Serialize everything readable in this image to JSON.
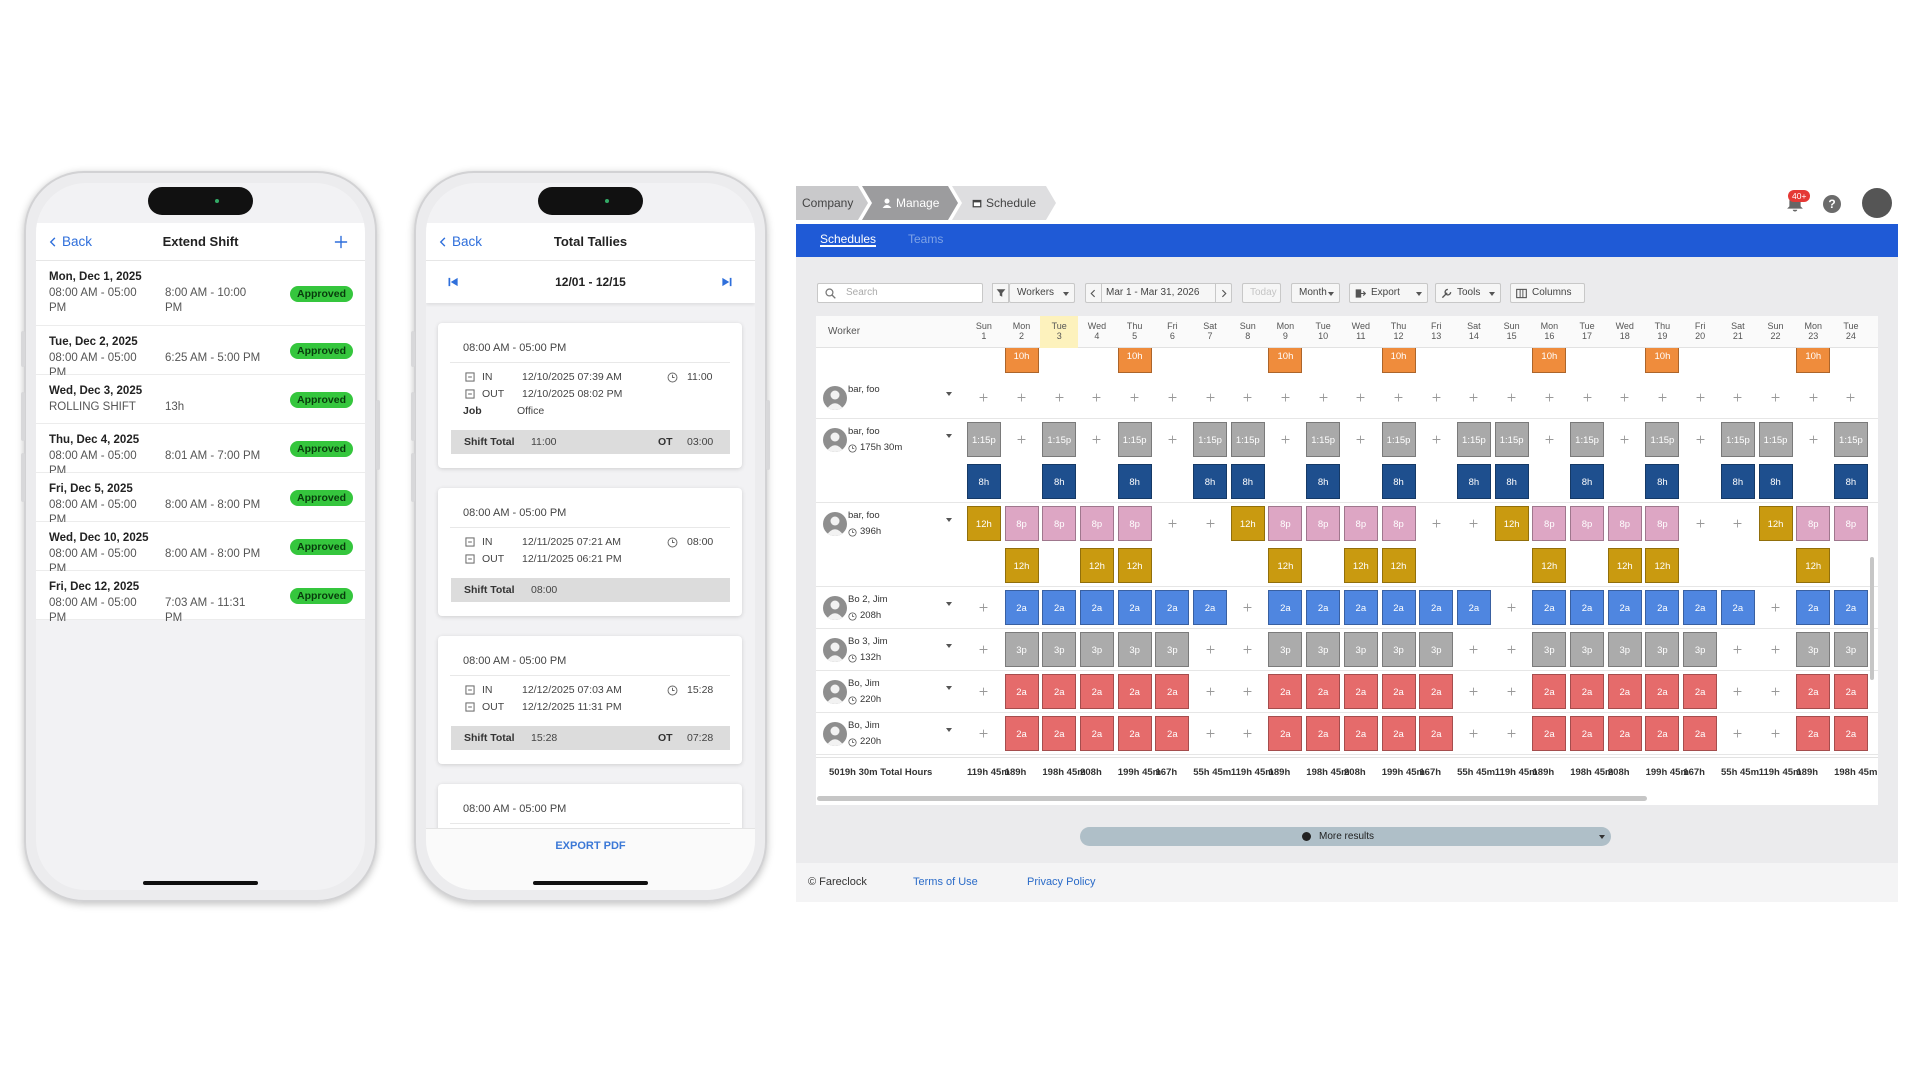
{
  "phone_extend": {
    "back": "Back",
    "title": "Extend Shift",
    "shifts": [
      {
        "date": "Mon, Dec 1, 2025",
        "scheduled": "08:00 AM - 05:00 PM",
        "actual": "8:00 AM - 10:00 PM",
        "status": "Approved"
      },
      {
        "date": "Tue, Dec 2, 2025",
        "scheduled": "08:00 AM - 05:00 PM",
        "actual": "6:25 AM - 5:00 PM",
        "status": "Approved"
      },
      {
        "date": "Wed, Dec 3, 2025",
        "scheduled": "ROLLING SHIFT",
        "actual": "13h",
        "status": "Approved"
      },
      {
        "date": "Thu, Dec 4, 2025",
        "scheduled": "08:00 AM - 05:00 PM",
        "actual": "8:01 AM - 7:00 PM",
        "status": "Approved"
      },
      {
        "date": "Fri, Dec 5, 2025",
        "scheduled": "08:00 AM - 05:00 PM",
        "actual": "8:00 AM - 8:00 PM",
        "status": "Approved"
      },
      {
        "date": "Wed, Dec 10, 2025",
        "scheduled": "08:00 AM - 05:00 PM",
        "actual": "8:00 AM - 8:00 PM",
        "status": "Approved"
      },
      {
        "date": "Fri, Dec 12, 2025",
        "scheduled": "08:00 AM - 05:00 PM",
        "actual": "7:03 AM - 11:31 PM",
        "status": "Approved"
      }
    ]
  },
  "phone_tallies": {
    "back": "Back",
    "title": "Total Tallies",
    "range": "12/01 - 12/15",
    "export": "EXPORT PDF",
    "cards": [
      {
        "shift": "08:00 AM - 05:00 PM",
        "in_label": "IN",
        "in": "12/10/2025 07:39 AM",
        "out_label": "OUT",
        "out": "12/10/2025 08:02 PM",
        "duration": "11:00",
        "job_label": "Job",
        "job": "Office",
        "total_label": "Shift Total",
        "total": "11:00",
        "ot_label": "OT",
        "ot": "03:00"
      },
      {
        "shift": "08:00 AM - 05:00 PM",
        "in_label": "IN",
        "in": "12/11/2025 07:21 AM",
        "out_label": "OUT",
        "out": "12/11/2025 06:21 PM",
        "duration": "08:00",
        "total_label": "Shift Total",
        "total": "08:00"
      },
      {
        "shift": "08:00 AM - 05:00 PM",
        "in_label": "IN",
        "in": "12/12/2025 07:03 AM",
        "out_label": "OUT",
        "out": "12/12/2025 11:31 PM",
        "duration": "15:28",
        "total_label": "Shift Total",
        "total": "15:28",
        "ot_label": "OT",
        "ot": "07:28"
      },
      {
        "shift": "08:00 AM - 05:00 PM"
      }
    ]
  },
  "schedule": {
    "breadcrumb": [
      "Company",
      "Manage",
      "Schedule"
    ],
    "badge": "40+",
    "help": "?",
    "tabs": [
      "Schedules",
      "Teams"
    ],
    "search_placeholder": "Search",
    "workers_button": "Workers",
    "date_range": "Mar 1 - Mar 31, 2026",
    "today": "Today",
    "view": "Month",
    "export": "Export",
    "tools": "Tools",
    "columns": "Columns",
    "worker_header": "Worker",
    "days": [
      {
        "dow": "Sun",
        "day": 1
      },
      {
        "dow": "Mon",
        "day": 2
      },
      {
        "dow": "Tue",
        "day": 3,
        "highlight": true
      },
      {
        "dow": "Wed",
        "day": 4
      },
      {
        "dow": "Thu",
        "day": 5
      },
      {
        "dow": "Fri",
        "day": 6
      },
      {
        "dow": "Sat",
        "day": 7
      },
      {
        "dow": "Sun",
        "day": 8
      },
      {
        "dow": "Mon",
        "day": 9
      },
      {
        "dow": "Tue",
        "day": 10
      },
      {
        "dow": "Wed",
        "day": 11
      },
      {
        "dow": "Thu",
        "day": 12
      },
      {
        "dow": "Fri",
        "day": 13
      },
      {
        "dow": "Sat",
        "day": 14
      },
      {
        "dow": "Sun",
        "day": 15
      },
      {
        "dow": "Mon",
        "day": 16
      },
      {
        "dow": "Tue",
        "day": 17
      },
      {
        "dow": "Wed",
        "day": 18
      },
      {
        "dow": "Thu",
        "day": 19
      },
      {
        "dow": "Fri",
        "day": 20
      },
      {
        "dow": "Sat",
        "day": 21
      },
      {
        "dow": "Sun",
        "day": 22
      },
      {
        "dow": "Mon",
        "day": 23
      },
      {
        "dow": "Tue",
        "day": 24
      }
    ],
    "top_line": {
      "colors": {
        "10h": "#ef8c3c"
      },
      "cells": [
        null,
        "10h",
        null,
        null,
        "10h",
        null,
        null,
        null,
        "10h",
        null,
        null,
        "10h",
        null,
        null,
        null,
        "10h",
        null,
        null,
        "10h",
        null,
        null,
        null,
        "10h",
        null
      ]
    },
    "workers": [
      {
        "name": "bar, foo",
        "lines": [
          {
            "colors": {},
            "cells": [
              null,
              null,
              null,
              null,
              null,
              null,
              null,
              null,
              null,
              null,
              null,
              null,
              null,
              null,
              null,
              null,
              null,
              null,
              null,
              null,
              null,
              null,
              null,
              null
            ]
          }
        ]
      },
      {
        "name": "bar, foo",
        "hours": "175h 30m",
        "lines": [
          {
            "colors": {
              "1:15p": "#a9a9a9"
            },
            "cells": [
              "1:15p",
              null,
              "1:15p",
              null,
              "1:15p",
              null,
              "1:15p",
              "1:15p",
              null,
              "1:15p",
              null,
              "1:15p",
              null,
              "1:15p",
              "1:15p",
              null,
              "1:15p",
              null,
              "1:15p",
              null,
              "1:15p",
              "1:15p",
              null,
              "1:15p"
            ]
          },
          {
            "colors": {
              "8h": "#1e4f8e"
            },
            "cells": [
              "8h",
              null,
              "8h",
              null,
              "8h",
              null,
              "8h",
              "8h",
              null,
              "8h",
              null,
              "8h",
              null,
              "8h",
              "8h",
              null,
              "8h",
              null,
              "8h",
              null,
              "8h",
              "8h",
              null,
              "8h"
            ]
          }
        ]
      },
      {
        "name": "bar, foo",
        "hours": "396h",
        "lines": [
          {
            "colors": {
              "12h": "#c99a10",
              "8p": "#dda6c4"
            },
            "cells": [
              "12h",
              "8p",
              "8p",
              "8p",
              "8p",
              null,
              null,
              "12h",
              "8p",
              "8p",
              "8p",
              "8p",
              null,
              null,
              "12h",
              "8p",
              "8p",
              "8p",
              "8p",
              null,
              null,
              "12h",
              "8p",
              "8p"
            ]
          },
          {
            "colors": {
              "12h": "#c99a10"
            },
            "cells": [
              null,
              "12h",
              null,
              "12h",
              "12h",
              null,
              null,
              null,
              "12h",
              null,
              "12h",
              "12h",
              null,
              null,
              null,
              "12h",
              null,
              "12h",
              "12h",
              null,
              null,
              null,
              "12h",
              null
            ]
          }
        ]
      },
      {
        "name": "Bo 2, Jim",
        "hours": "208h",
        "lines": [
          {
            "colors": {
              "2a": "#4f86e0"
            },
            "cells": [
              null,
              "2a",
              "2a",
              "2a",
              "2a",
              "2a",
              "2a",
              null,
              "2a",
              "2a",
              "2a",
              "2a",
              "2a",
              "2a",
              null,
              "2a",
              "2a",
              "2a",
              "2a",
              "2a",
              "2a",
              null,
              "2a",
              "2a"
            ]
          }
        ]
      },
      {
        "name": "Bo 3, Jim",
        "hours": "132h",
        "lines": [
          {
            "colors": {
              "3p": "#ababab"
            },
            "cells": [
              null,
              "3p",
              "3p",
              "3p",
              "3p",
              "3p",
              null,
              null,
              "3p",
              "3p",
              "3p",
              "3p",
              "3p",
              null,
              null,
              "3p",
              "3p",
              "3p",
              "3p",
              "3p",
              null,
              null,
              "3p",
              "3p"
            ]
          }
        ]
      },
      {
        "name": "Bo, Jim",
        "hours": "220h",
        "lines": [
          {
            "colors": {
              "2a": "#e56b6b"
            },
            "cells": [
              null,
              "2a",
              "2a",
              "2a",
              "2a",
              "2a",
              null,
              null,
              "2a",
              "2a",
              "2a",
              "2a",
              "2a",
              null,
              null,
              "2a",
              "2a",
              "2a",
              "2a",
              "2a",
              null,
              null,
              "2a",
              "2a"
            ]
          }
        ]
      },
      {
        "name": "Bo, Jim",
        "hours": "220h",
        "lines": [
          {
            "colors": {
              "2a": "#e56b6b"
            },
            "cells": [
              null,
              "2a",
              "2a",
              "2a",
              "2a",
              "2a",
              null,
              null,
              "2a",
              "2a",
              "2a",
              "2a",
              "2a",
              null,
              null,
              "2a",
              "2a",
              "2a",
              "2a",
              "2a",
              null,
              null,
              "2a",
              "2a"
            ]
          }
        ]
      }
    ],
    "total_label": "5019h 30m Total Hours",
    "totals": [
      "119h 45m",
      "189h",
      "198h 45m",
      "208h",
      "199h 45m",
      "167h",
      "55h 45m",
      "119h 45m",
      "189h",
      "198h 45m",
      "208h",
      "199h 45m",
      "167h",
      "55h 45m",
      "119h 45m",
      "189h",
      "198h 45m",
      "208h",
      "199h 45m",
      "167h",
      "55h 45m",
      "119h 45m",
      "189h",
      "198h 45m"
    ],
    "more_results": "More results",
    "footer": {
      "copyright": "© Fareclock",
      "terms": "Terms of Use",
      "privacy": "Privacy Policy"
    }
  }
}
